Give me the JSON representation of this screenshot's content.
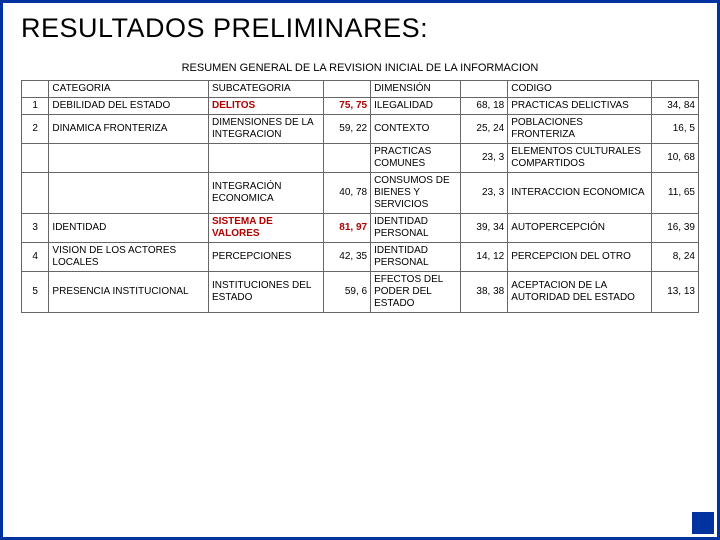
{
  "title": "RESULTADOS PRELIMINARES:",
  "tableTitle": "RESUMEN GENERAL DE LA REVISION INICIAL DE LA INFORMACION",
  "headers": {
    "categoria": "CATEGORIA",
    "subcategoria": "SUBCATEGORIA",
    "dimension": "DIMENSIÓN",
    "codigo": "CODIGO"
  },
  "rows": [
    {
      "n": "1",
      "cat": "DEBILIDAD DEL ESTADO",
      "sub": "DELITOS",
      "subBold": true,
      "v1": "75, 75",
      "v1Bold": true,
      "dim": "ILEGALIDAD",
      "v2": "68, 18",
      "cod": "PRACTICAS DELICTIVAS",
      "v3": "34, 84"
    },
    {
      "n": "2",
      "cat": "DINAMICA FRONTERIZA",
      "sub": "DIMENSIONES DE LA INTEGRACION",
      "v1": "59, 22",
      "dim": "CONTEXTO",
      "v2": "25, 24",
      "cod": "POBLACIONES FRONTERIZA",
      "v3": "16, 5"
    },
    {
      "n": "",
      "cat": "",
      "sub": "",
      "v1": "",
      "dim": "PRACTICAS COMUNES",
      "v2": "23, 3",
      "cod": "ELEMENTOS CULTURALES COMPARTIDOS",
      "v3": "10, 68"
    },
    {
      "n": "",
      "cat": "",
      "sub": "INTEGRACIÓN ECONOMICA",
      "v1": "40, 78",
      "dim": "CONSUMOS DE BIENES Y SERVICIOS",
      "v2": "23, 3",
      "cod": "INTERACCION ECONOMICA",
      "v3": "11, 65"
    },
    {
      "n": "3",
      "cat": "IDENTIDAD",
      "sub": "SISTEMA DE VALORES",
      "subBold": true,
      "v1": "81, 97",
      "v1Bold": true,
      "dim": "IDENTIDAD PERSONAL",
      "v2": "39, 34",
      "cod": "AUTOPERCEPCIÓN",
      "v3": "16, 39"
    },
    {
      "n": "4",
      "cat": "VISION DE LOS ACTORES LOCALES",
      "sub": "PERCEPCIONES",
      "v1": "42, 35",
      "dim": "IDENTIDAD PERSONAL",
      "v2": "14, 12",
      "cod": "PERCEPCION DEL OTRO",
      "v3": "8, 24"
    },
    {
      "n": "5",
      "cat": "PRESENCIA INSTITUCIONAL",
      "sub": "INSTITUCIONES DEL ESTADO",
      "v1": "59, 6",
      "dim": "EFECTOS DEL PODER DEL ESTADO",
      "v2": "38, 38",
      "cod": "ACEPTACION DE LA AUTORIDAD DEL ESTADO",
      "v3": "13, 13"
    }
  ],
  "colors": {
    "border": "#0033a0",
    "boldText": "#B00000",
    "text": "#000000"
  }
}
